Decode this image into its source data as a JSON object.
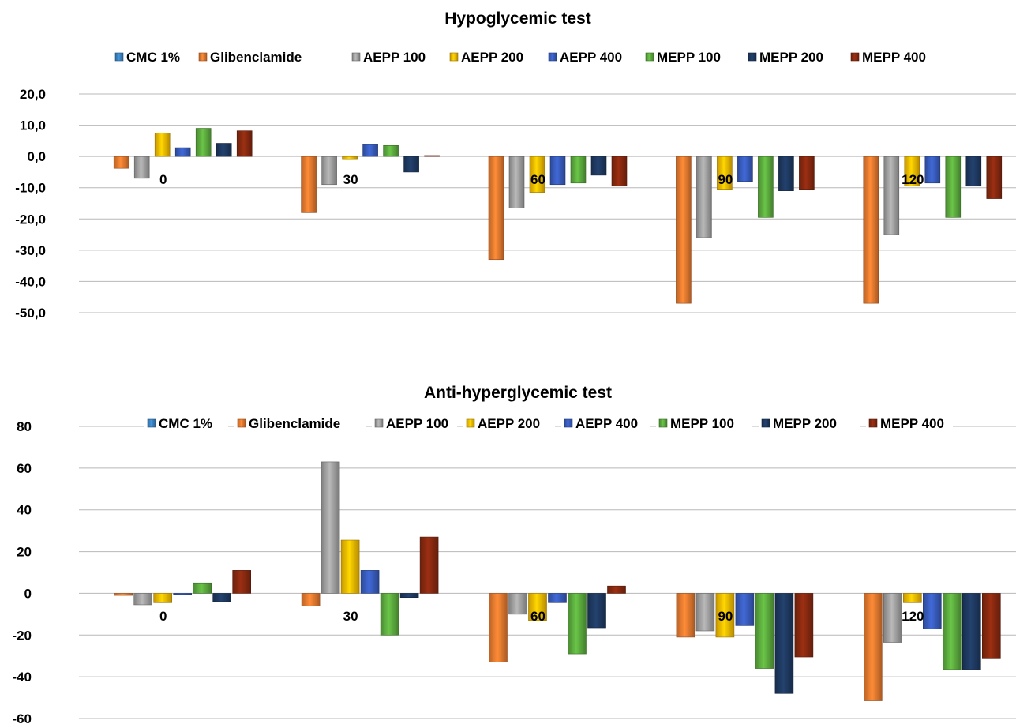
{
  "series_colors": {
    "CMC 1%": "#3e86c6",
    "Glibenclamide": "#ee7d31",
    "AEPP 100": "#a5a5a5",
    "AEPP 200": "#fec000",
    "AEPP 400": "#3a5fc2",
    "MEPP 100": "#5fb040",
    "MEPP 200": "#1f3b63",
    "MEPP 400": "#8b2a10"
  },
  "chart_data": [
    {
      "type": "bar",
      "title": "Hypoglycemic test",
      "categories": [
        "0",
        "30",
        "60",
        "90",
        "120"
      ],
      "ylim": [
        -50,
        20
      ],
      "yticks": [
        "20,0",
        "10,0",
        "0,0",
        "-10,0",
        "-20,0",
        "-30,0",
        "-40,0",
        "-50,0"
      ],
      "legend_position": "top",
      "grid": true,
      "series": [
        {
          "name": "CMC 1%",
          "values": [
            0,
            0,
            0,
            0,
            0
          ]
        },
        {
          "name": "Glibenclamide",
          "values": [
            -3.8,
            -18.0,
            -33.0,
            -47.0,
            -47.0
          ]
        },
        {
          "name": "AEPP 100",
          "values": [
            -7.0,
            -9.0,
            -16.5,
            -26.0,
            -25.0
          ]
        },
        {
          "name": "AEPP 200",
          "values": [
            7.5,
            -1.0,
            -11.5,
            -10.5,
            -9.5
          ]
        },
        {
          "name": "AEPP 400",
          "values": [
            2.8,
            3.8,
            -9.0,
            -8.0,
            -8.5
          ]
        },
        {
          "name": "MEPP 100",
          "values": [
            9.0,
            3.5,
            -8.5,
            -19.5,
            -19.5
          ]
        },
        {
          "name": "MEPP 200",
          "values": [
            4.2,
            -5.0,
            -6.0,
            -11.0,
            -9.5
          ]
        },
        {
          "name": "MEPP 400",
          "values": [
            8.2,
            0.3,
            -9.5,
            -10.5,
            -13.5
          ]
        }
      ]
    },
    {
      "type": "bar",
      "title": "Anti-hyperglycemic test",
      "categories": [
        "0",
        "30",
        "60",
        "90",
        "120"
      ],
      "ylim": [
        -60,
        80
      ],
      "yticks": [
        "80",
        "60",
        "40",
        "20",
        "0",
        "-20",
        "-40",
        "-60"
      ],
      "legend_position": "top",
      "grid": true,
      "series": [
        {
          "name": "CMC 1%",
          "values": [
            0,
            0,
            0,
            0,
            0
          ]
        },
        {
          "name": "Glibenclamide",
          "values": [
            -1.0,
            -6.0,
            -33.0,
            -21.0,
            -51.5
          ]
        },
        {
          "name": "AEPP 100",
          "values": [
            -5.5,
            63.0,
            -10.0,
            -18.0,
            -23.5
          ]
        },
        {
          "name": "AEPP 200",
          "values": [
            -4.5,
            25.5,
            -13.0,
            -21.0,
            -4.5
          ]
        },
        {
          "name": "AEPP 400",
          "values": [
            -0.5,
            11.0,
            -4.5,
            -15.5,
            -17.0
          ]
        },
        {
          "name": "MEPP 100",
          "values": [
            5.0,
            -20.0,
            -29.0,
            -36.0,
            -36.5
          ]
        },
        {
          "name": "MEPP 200",
          "values": [
            -4.0,
            -2.0,
            -16.5,
            -48.0,
            -36.5
          ]
        },
        {
          "name": "MEPP 400",
          "values": [
            11.0,
            27.0,
            3.5,
            -30.5,
            -31.0
          ]
        }
      ]
    }
  ]
}
